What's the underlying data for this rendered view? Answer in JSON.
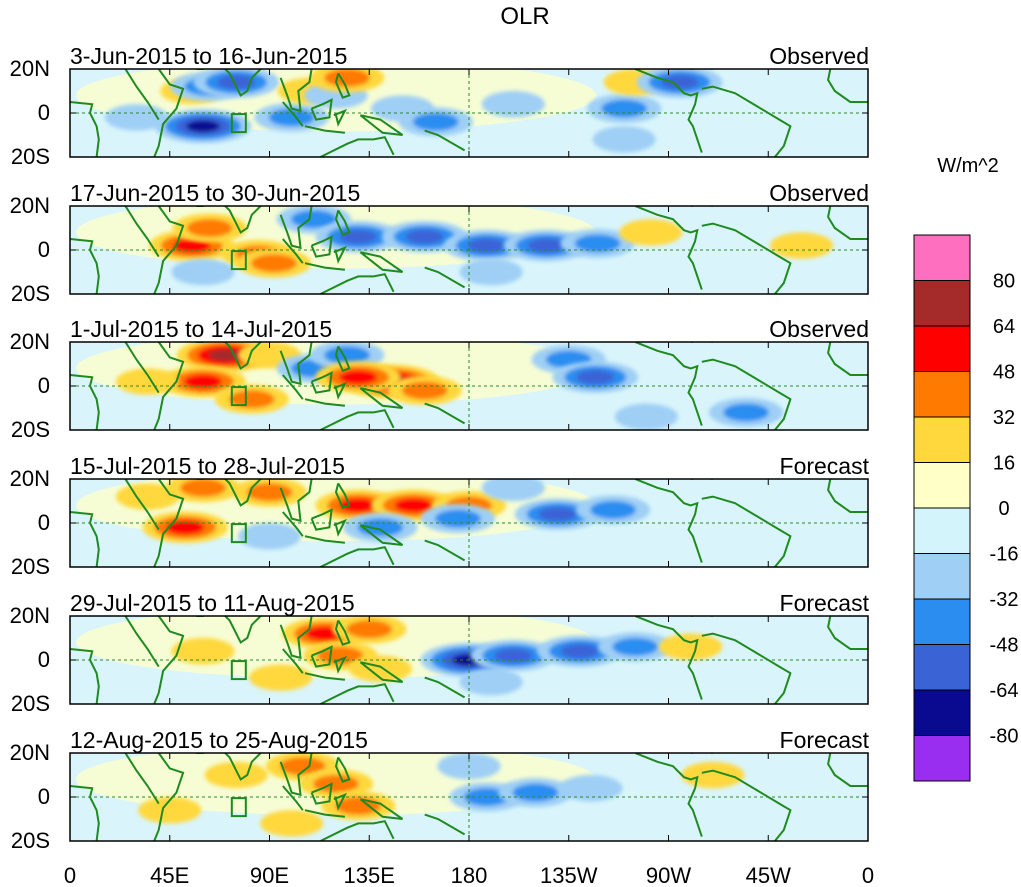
{
  "chart_data": {
    "type": "heatmap",
    "title": "OLR",
    "colorbar": {
      "units": "W/m^2",
      "levels": [
        80,
        64,
        48,
        32,
        16,
        0,
        -16,
        -32,
        -48,
        -64,
        -80
      ],
      "colors": [
        "#ff6fc0",
        "#a52a2a",
        "#ff0000",
        "#ff7a00",
        "#ffd83d",
        "#ffffc8",
        "#d4f4fc",
        "#9fcff5",
        "#2b8df0",
        "#3a63d6",
        "#0a0a91",
        "#9a2ef0"
      ]
    },
    "x_ticks": [
      "0",
      "45E",
      "90E",
      "135E",
      "180",
      "135W",
      "90W",
      "45W",
      "0"
    ],
    "y_ticks": [
      "20N",
      "0",
      "20S"
    ],
    "xlim": [
      0,
      360
    ],
    "ylim": [
      -20,
      20
    ],
    "panels": [
      {
        "period": "3-Jun-2015 to 16-Jun-2015",
        "kind": "Observed",
        "anomalies": [
          {
            "lon": 30,
            "lat": -2,
            "value": -16
          },
          {
            "lon": 55,
            "lat": 10,
            "value": 16
          },
          {
            "lon": 60,
            "lat": -6,
            "value": -64
          },
          {
            "lon": 62,
            "lat": 12,
            "value": -32
          },
          {
            "lon": 75,
            "lat": 14,
            "value": -48
          },
          {
            "lon": 100,
            "lat": -2,
            "value": -32
          },
          {
            "lon": 108,
            "lat": 10,
            "value": 16
          },
          {
            "lon": 120,
            "lat": 8,
            "value": -16
          },
          {
            "lon": 125,
            "lat": 16,
            "value": 32
          },
          {
            "lon": 150,
            "lat": 2,
            "value": -16
          },
          {
            "lon": 165,
            "lat": -4,
            "value": -32
          },
          {
            "lon": 200,
            "lat": 4,
            "value": -16
          },
          {
            "lon": 250,
            "lat": 2,
            "value": -32
          },
          {
            "lon": 255,
            "lat": 14,
            "value": 16
          },
          {
            "lon": 275,
            "lat": 14,
            "value": -48
          },
          {
            "lon": 250,
            "lat": -12,
            "value": -16
          }
        ]
      },
      {
        "period": "17-Jun-2015 to 30-Jun-2015",
        "kind": "Observed",
        "anomalies": [
          {
            "lon": 55,
            "lat": 2,
            "value": 48
          },
          {
            "lon": 63,
            "lat": 10,
            "value": 32
          },
          {
            "lon": 85,
            "lat": -2,
            "value": 32
          },
          {
            "lon": 92,
            "lat": -6,
            "value": 32
          },
          {
            "lon": 110,
            "lat": 14,
            "value": -32
          },
          {
            "lon": 130,
            "lat": 6,
            "value": -48
          },
          {
            "lon": 160,
            "lat": 6,
            "value": -48
          },
          {
            "lon": 188,
            "lat": 2,
            "value": -48
          },
          {
            "lon": 215,
            "lat": 2,
            "value": -48
          },
          {
            "lon": 238,
            "lat": 3,
            "value": -32
          },
          {
            "lon": 262,
            "lat": 8,
            "value": 16
          },
          {
            "lon": 330,
            "lat": 2,
            "value": 16
          },
          {
            "lon": 190,
            "lat": -10,
            "value": -16
          },
          {
            "lon": 60,
            "lat": -10,
            "value": -16
          }
        ]
      },
      {
        "period": "1-Jul-2015 to 14-Jul-2015",
        "kind": "Observed",
        "anomalies": [
          {
            "lon": 70,
            "lat": 14,
            "value": 64
          },
          {
            "lon": 60,
            "lat": 2,
            "value": 48
          },
          {
            "lon": 82,
            "lat": -6,
            "value": 32
          },
          {
            "lon": 90,
            "lat": 14,
            "value": 16
          },
          {
            "lon": 110,
            "lat": 8,
            "value": -32
          },
          {
            "lon": 125,
            "lat": 14,
            "value": -32
          },
          {
            "lon": 145,
            "lat": 2,
            "value": 64
          },
          {
            "lon": 130,
            "lat": 4,
            "value": 48
          },
          {
            "lon": 160,
            "lat": -2,
            "value": 32
          },
          {
            "lon": 225,
            "lat": 12,
            "value": -32
          },
          {
            "lon": 237,
            "lat": 4,
            "value": -48
          },
          {
            "lon": 305,
            "lat": -12,
            "value": -32
          },
          {
            "lon": 35,
            "lat": 2,
            "value": 16
          },
          {
            "lon": 260,
            "lat": -14,
            "value": -16
          }
        ]
      },
      {
        "period": "15-Jul-2015 to 28-Jul-2015",
        "kind": "Forecast",
        "anomalies": [
          {
            "lon": 52,
            "lat": -2,
            "value": 48
          },
          {
            "lon": 60,
            "lat": 16,
            "value": 32
          },
          {
            "lon": 90,
            "lat": 14,
            "value": 32
          },
          {
            "lon": 130,
            "lat": 8,
            "value": 48
          },
          {
            "lon": 155,
            "lat": 8,
            "value": 48
          },
          {
            "lon": 180,
            "lat": 8,
            "value": 32
          },
          {
            "lon": 140,
            "lat": -2,
            "value": -32
          },
          {
            "lon": 175,
            "lat": 2,
            "value": -32
          },
          {
            "lon": 220,
            "lat": 4,
            "value": -48
          },
          {
            "lon": 245,
            "lat": 6,
            "value": -32
          },
          {
            "lon": 200,
            "lat": 16,
            "value": -16
          },
          {
            "lon": 35,
            "lat": 12,
            "value": 16
          },
          {
            "lon": 90,
            "lat": -6,
            "value": -16
          }
        ]
      },
      {
        "period": "29-Jul-2015 to 11-Aug-2015",
        "kind": "Forecast",
        "anomalies": [
          {
            "lon": 60,
            "lat": 4,
            "value": 16
          },
          {
            "lon": 115,
            "lat": 12,
            "value": 48
          },
          {
            "lon": 135,
            "lat": 14,
            "value": 32
          },
          {
            "lon": 122,
            "lat": 2,
            "value": 32
          },
          {
            "lon": 140,
            "lat": -4,
            "value": 16
          },
          {
            "lon": 180,
            "lat": 0,
            "value": -64
          },
          {
            "lon": 200,
            "lat": 2,
            "value": -48
          },
          {
            "lon": 230,
            "lat": 4,
            "value": -48
          },
          {
            "lon": 255,
            "lat": 6,
            "value": -32
          },
          {
            "lon": 280,
            "lat": 6,
            "value": 16
          },
          {
            "lon": 190,
            "lat": -10,
            "value": -16
          },
          {
            "lon": 95,
            "lat": -8,
            "value": 16
          }
        ]
      },
      {
        "period": "12-Aug-2015 to 25-Aug-2015",
        "kind": "Forecast",
        "anomalies": [
          {
            "lon": 105,
            "lat": 14,
            "value": 32
          },
          {
            "lon": 120,
            "lat": 6,
            "value": 32
          },
          {
            "lon": 130,
            "lat": -4,
            "value": 32
          },
          {
            "lon": 75,
            "lat": 10,
            "value": 16
          },
          {
            "lon": 188,
            "lat": 0,
            "value": -32
          },
          {
            "lon": 210,
            "lat": 2,
            "value": -32
          },
          {
            "lon": 235,
            "lat": 4,
            "value": -16
          },
          {
            "lon": 290,
            "lat": 10,
            "value": 16
          },
          {
            "lon": 45,
            "lat": -6,
            "value": 16
          },
          {
            "lon": 100,
            "lat": -12,
            "value": 16
          },
          {
            "lon": 180,
            "lat": 14,
            "value": -16
          }
        ]
      }
    ]
  }
}
